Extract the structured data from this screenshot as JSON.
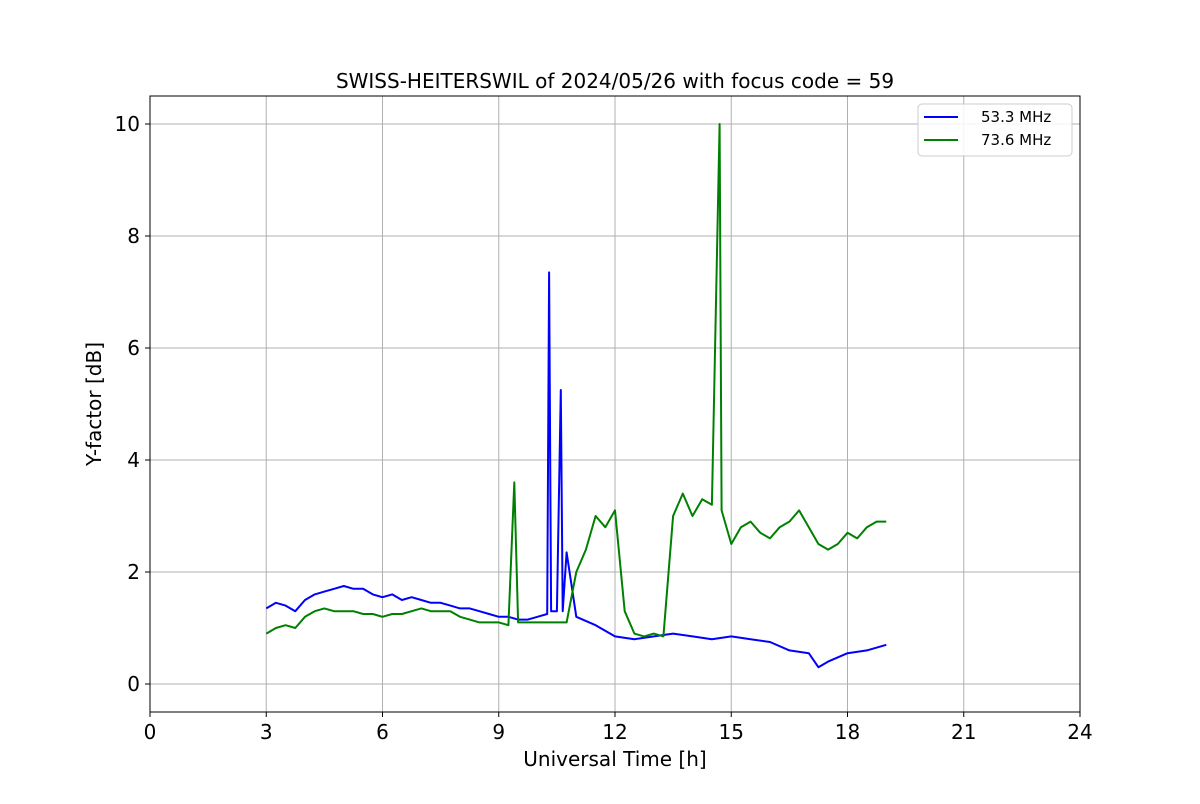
{
  "chart_data": {
    "type": "line",
    "title": "SWISS-HEITERSWIL of 2024/05/26 with focus code = 59",
    "xlabel": "Universal Time [h]",
    "ylabel": "Y-factor [dB]",
    "xlim": [
      0,
      24
    ],
    "ylim": [
      -0.5,
      10.5
    ],
    "xticks": [
      0,
      3,
      6,
      9,
      12,
      15,
      18,
      21,
      24
    ],
    "yticks": [
      0,
      2,
      4,
      6,
      8,
      10
    ],
    "grid": true,
    "legend_position": "top-right",
    "series": [
      {
        "name": "53.3 MHz",
        "color": "#0000ff",
        "x": [
          3.0,
          3.25,
          3.5,
          3.75,
          4.0,
          4.25,
          4.5,
          4.75,
          5.0,
          5.25,
          5.5,
          5.75,
          6.0,
          6.25,
          6.5,
          6.75,
          7.0,
          7.25,
          7.5,
          7.75,
          8.0,
          8.25,
          8.5,
          8.75,
          9.0,
          9.25,
          9.5,
          9.75,
          10.0,
          10.25,
          10.3,
          10.35,
          10.5,
          10.6,
          10.65,
          10.75,
          11.0,
          11.5,
          12.0,
          12.5,
          13.0,
          13.5,
          14.0,
          14.5,
          15.0,
          15.5,
          16.0,
          16.5,
          17.0,
          17.25,
          17.5,
          18.0,
          18.5,
          19.0
        ],
        "y": [
          1.35,
          1.45,
          1.4,
          1.3,
          1.5,
          1.6,
          1.65,
          1.7,
          1.75,
          1.7,
          1.7,
          1.6,
          1.55,
          1.6,
          1.5,
          1.55,
          1.5,
          1.45,
          1.45,
          1.4,
          1.35,
          1.35,
          1.3,
          1.25,
          1.2,
          1.2,
          1.15,
          1.15,
          1.2,
          1.25,
          7.35,
          1.3,
          1.3,
          5.25,
          1.3,
          2.35,
          1.2,
          1.05,
          0.85,
          0.8,
          0.85,
          0.9,
          0.85,
          0.8,
          0.85,
          0.8,
          0.75,
          0.6,
          0.55,
          0.3,
          0.4,
          0.55,
          0.6,
          0.7
        ]
      },
      {
        "name": "73.6 MHz",
        "color": "#008000",
        "x": [
          3.0,
          3.25,
          3.5,
          3.75,
          4.0,
          4.25,
          4.5,
          4.75,
          5.0,
          5.25,
          5.5,
          5.75,
          6.0,
          6.25,
          6.5,
          6.75,
          7.0,
          7.25,
          7.5,
          7.75,
          8.0,
          8.25,
          8.5,
          8.75,
          9.0,
          9.25,
          9.4,
          9.5,
          9.75,
          10.0,
          10.25,
          10.5,
          10.75,
          11.0,
          11.25,
          11.5,
          11.75,
          12.0,
          12.25,
          12.5,
          12.75,
          13.0,
          13.25,
          13.5,
          13.75,
          14.0,
          14.25,
          14.5,
          14.7,
          14.75,
          15.0,
          15.25,
          15.5,
          15.75,
          16.0,
          16.25,
          16.5,
          16.75,
          17.0,
          17.25,
          17.5,
          17.75,
          18.0,
          18.25,
          18.5,
          18.75,
          19.0
        ],
        "y": [
          0.9,
          1.0,
          1.05,
          1.0,
          1.2,
          1.3,
          1.35,
          1.3,
          1.3,
          1.3,
          1.25,
          1.25,
          1.2,
          1.25,
          1.25,
          1.3,
          1.35,
          1.3,
          1.3,
          1.3,
          1.2,
          1.15,
          1.1,
          1.1,
          1.1,
          1.05,
          3.6,
          1.1,
          1.1,
          1.1,
          1.1,
          1.1,
          1.1,
          2.0,
          2.4,
          3.0,
          2.8,
          3.1,
          1.3,
          0.9,
          0.85,
          0.9,
          0.85,
          3.0,
          3.4,
          3.0,
          3.3,
          3.2,
          10.0,
          3.1,
          2.5,
          2.8,
          2.9,
          2.7,
          2.6,
          2.8,
          2.9,
          3.1,
          2.8,
          2.5,
          2.4,
          2.5,
          2.7,
          2.6,
          2.8,
          2.9,
          2.9
        ]
      }
    ]
  }
}
